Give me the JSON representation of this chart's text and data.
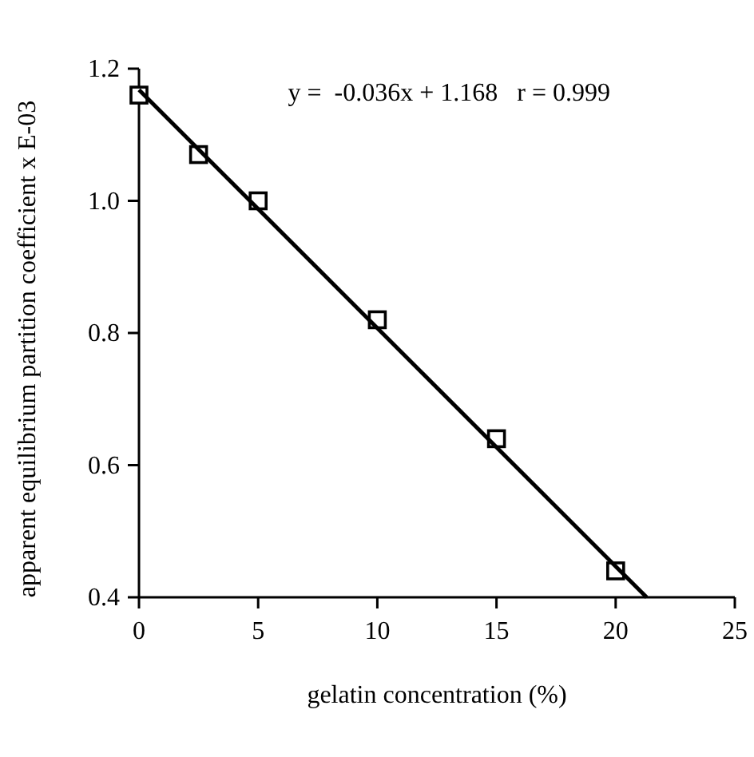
{
  "chart_data": {
    "type": "scatter",
    "xlabel": "gelatin concentration (%)",
    "ylabel": "apparent equilibrium partition coefficient x E-03",
    "xlim": [
      0,
      25
    ],
    "xticks": [
      0,
      5,
      10,
      15,
      20,
      25
    ],
    "ylim": [
      0.4,
      1.2
    ],
    "yticks": [
      {
        "value": 0.4,
        "label": "0.4"
      },
      {
        "value": 0.6,
        "label": "0.6"
      },
      {
        "value": 0.8,
        "label": "0.8"
      },
      {
        "value": 1.0,
        "label": "1.0"
      },
      {
        "value": 1.2,
        "label": "1.2"
      }
    ],
    "grid": false,
    "annotations": [
      "y =  -0.036x + 1.168   r = 0.999"
    ],
    "series": [
      {
        "color": "#000000",
        "marker": "square",
        "x": [
          0,
          2.5,
          5,
          10,
          15,
          20
        ],
        "values": [
          1.16,
          1.07,
          1.0,
          0.82,
          0.64,
          0.44
        ]
      },
      {
        "type": "line",
        "marker": "none",
        "color": "#000000",
        "x": [
          0,
          21.3
        ],
        "values": [
          1.168,
          0.4
        ]
      }
    ]
  }
}
